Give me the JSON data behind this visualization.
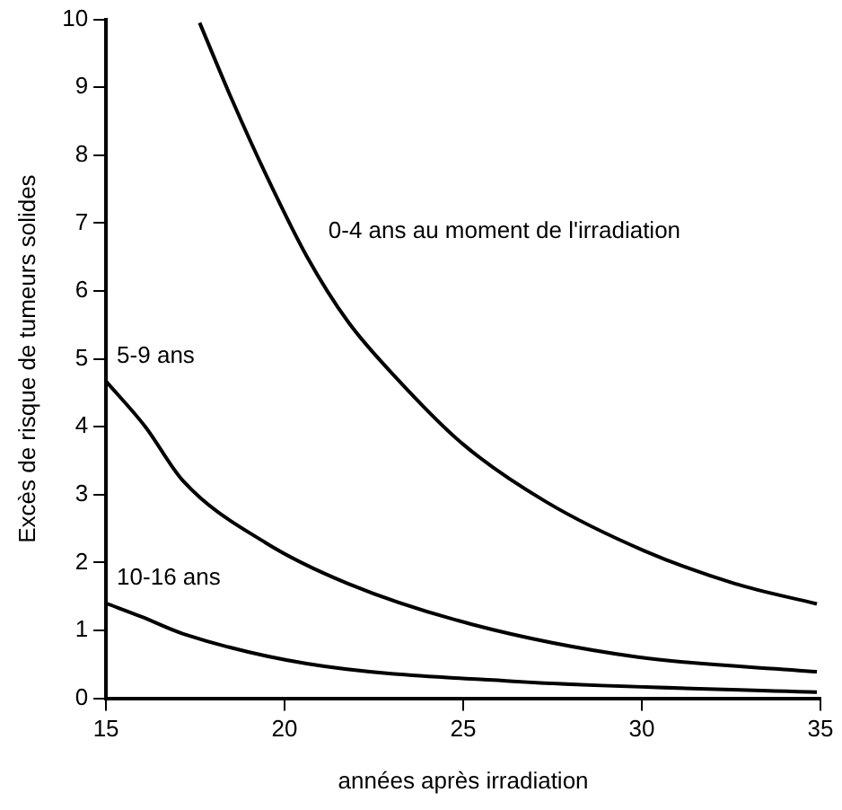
{
  "chart_data": {
    "type": "line",
    "xlabel": "années après irradiation",
    "ylabel": "Excès de risque de tumeurs solides",
    "xlim": [
      15,
      35
    ],
    "xticks": [
      15,
      20,
      25,
      30,
      35
    ],
    "ylim": [
      0,
      10
    ],
    "yticks": [
      0,
      1,
      2,
      3,
      4,
      5,
      6,
      7,
      8,
      9,
      10
    ],
    "grid": false,
    "marker": "none",
    "line_style": "solid",
    "legend": false,
    "series": [
      {
        "name": "0-4 ans au moment de l'irradiation",
        "color": "#000000",
        "x": [
          17.62,
          18.54,
          19.47,
          20.62,
          21.77,
          23.16,
          25,
          27.3,
          30.08,
          32.6,
          34.9
        ],
        "values": [
          9.95,
          8.8,
          7.72,
          6.51,
          5.55,
          4.7,
          3.74,
          2.9,
          2.17,
          1.69,
          1.39
        ]
      },
      {
        "name": "5-9 ans",
        "color": "#000000",
        "x": [
          15,
          16.1,
          17.16,
          19.47,
          21.77,
          25.24,
          29.85,
          34.9
        ],
        "values": [
          4.67,
          4,
          3.2,
          2.29,
          1.69,
          1.09,
          0.61,
          0.39
        ]
      },
      {
        "name": "10-16 ans",
        "color": "#000000",
        "x": [
          15,
          16,
          17.16,
          20.62,
          26.4,
          34.9
        ],
        "values": [
          1.4,
          1.2,
          0.95,
          0.51,
          0.25,
          0.09
        ]
      }
    ]
  }
}
